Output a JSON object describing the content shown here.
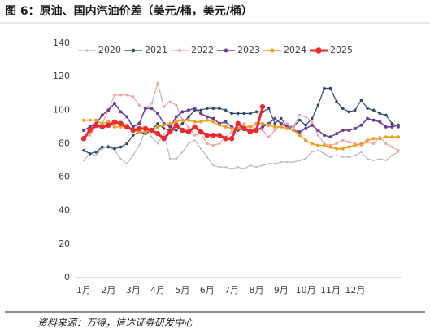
{
  "chart_data": {
    "type": "line",
    "title": "图 6：原油、国内汽油价差（美元/桶，美元/桶）",
    "source": "资料来源：万得，信达证券研发中心",
    "categories": [
      "1月",
      null,
      null,
      null,
      "2月",
      null,
      null,
      null,
      "3月",
      null,
      null,
      null,
      "4月",
      null,
      null,
      null,
      "5月",
      null,
      null,
      null,
      "6月",
      null,
      null,
      null,
      "7月",
      null,
      null,
      null,
      "8月",
      null,
      null,
      null,
      "9月",
      null,
      null,
      null,
      "10月",
      null,
      null,
      null,
      "11月",
      null,
      null,
      null,
      "12月",
      null,
      null,
      null,
      null,
      null,
      null,
      null
    ],
    "ylim": [
      0,
      140
    ],
    "yticks": [
      0,
      20,
      40,
      60,
      80,
      100,
      120,
      140
    ],
    "grid": false,
    "legend": "top",
    "series": [
      {
        "name": "2020",
        "color": "#b4bccb",
        "values": [
          70,
          74,
          73,
          77,
          79,
          76,
          71,
          68,
          73,
          79,
          88,
          84,
          80,
          86,
          71,
          71,
          75,
          80,
          82,
          77,
          72,
          67,
          66,
          66,
          65,
          66,
          65,
          67,
          66,
          67,
          68,
          68,
          69,
          69,
          69,
          70,
          71,
          75,
          76,
          74,
          72,
          73,
          72,
          72,
          73,
          75,
          71,
          70,
          71,
          70,
          73,
          75
        ]
      },
      {
        "name": "2021",
        "color": "#2f4a6d",
        "values": [
          76,
          74,
          75,
          78,
          78,
          77,
          78,
          80,
          85,
          87,
          86,
          88,
          92,
          89,
          88,
          88,
          92,
          96,
          100,
          100,
          101,
          101,
          101,
          100,
          98,
          98,
          98,
          98,
          99,
          99,
          101,
          92,
          95,
          90,
          90,
          94,
          91,
          95,
          103,
          113,
          113,
          105,
          101,
          99,
          100,
          106,
          101,
          100,
          98,
          97,
          92,
          90
        ]
      },
      {
        "name": "2022",
        "color": "#f4a0a0",
        "values": [
          84,
          85,
          90,
          92,
          100,
          109,
          109,
          109,
          108,
          103,
          101,
          104,
          116,
          102,
          105,
          103,
          94,
          90,
          85,
          86,
          80,
          79,
          80,
          84,
          87,
          89,
          92,
          90,
          89,
          88,
          84,
          88,
          91,
          92,
          90,
          97,
          96,
          93,
          85,
          80,
          79,
          80,
          82,
          81,
          80,
          79,
          81,
          80,
          84,
          80,
          78,
          76
        ]
      },
      {
        "name": "2023",
        "color": "#6a3d9a",
        "values": [
          88,
          90,
          92,
          97,
          100,
          104,
          99,
          96,
          90,
          92,
          101,
          101,
          98,
          92,
          90,
          96,
          99,
          100,
          101,
          98,
          96,
          95,
          92,
          93,
          90,
          88,
          89,
          88,
          88,
          90,
          92,
          95,
          92,
          90,
          88,
          87,
          89,
          91,
          88,
          85,
          84,
          86,
          88,
          88,
          89,
          91,
          95,
          94,
          93,
          90,
          90,
          91
        ]
      },
      {
        "name": "2024",
        "color": "#f59b1c",
        "values": [
          94,
          94,
          94,
          92,
          93,
          90,
          90,
          91,
          88,
          87,
          87,
          88,
          90,
          91,
          92,
          93,
          94,
          94,
          93,
          93,
          94,
          93,
          91,
          90,
          89,
          89,
          90,
          90,
          92,
          92,
          91,
          90,
          90,
          89,
          88,
          85,
          82,
          80,
          79,
          79,
          78,
          77,
          77,
          78,
          79,
          80,
          82,
          83,
          83,
          84,
          84,
          84
        ]
      },
      {
        "name": "2025",
        "color": "#f0282d",
        "values": [
          83,
          88,
          91,
          90,
          91,
          93,
          92,
          90,
          88,
          89,
          89,
          88,
          86,
          83,
          87,
          91,
          88,
          87,
          90,
          87,
          85,
          85,
          85,
          83,
          83,
          92,
          89,
          87,
          88,
          102,
          null,
          null,
          null,
          null,
          null,
          null,
          null,
          null,
          null,
          null,
          null,
          null,
          null,
          null,
          null,
          null,
          null,
          null,
          null,
          null,
          null,
          null
        ]
      }
    ]
  }
}
